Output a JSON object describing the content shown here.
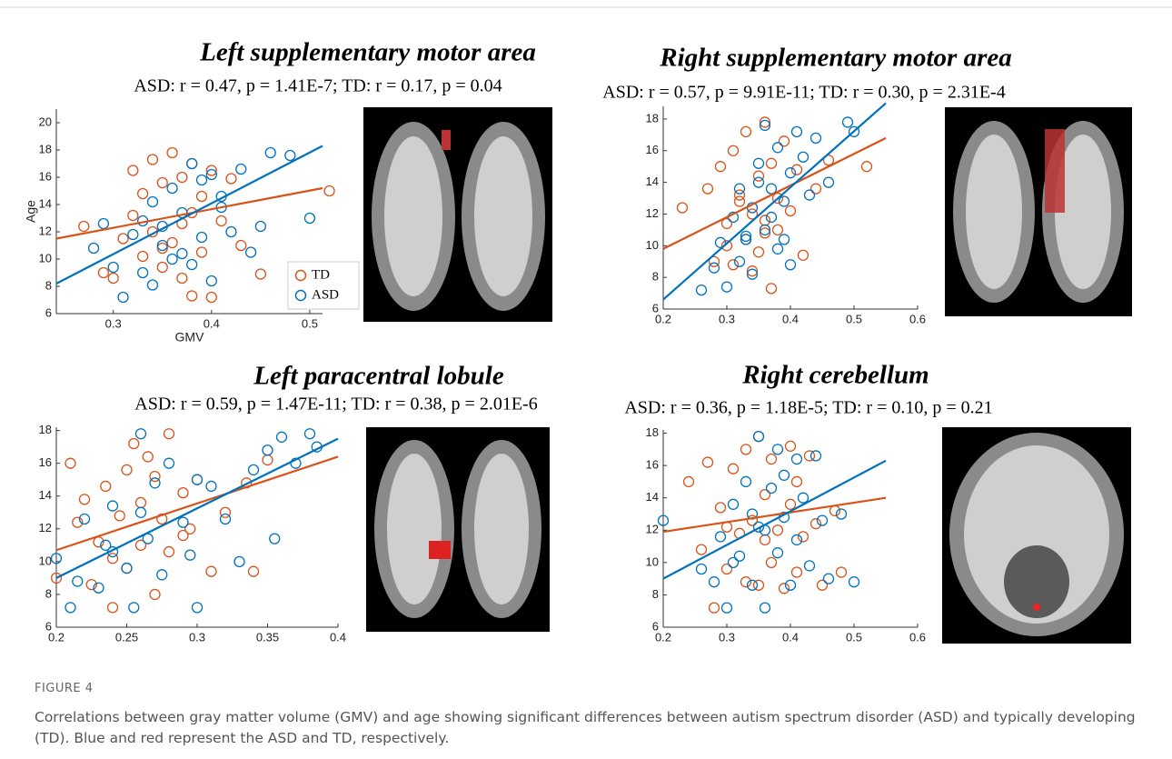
{
  "chart_data": [
    {
      "type": "scatter",
      "title": "Left supplementary motor area",
      "subtitle": "ASD: r = 0.47, p = 1.41E-7;  TD: r = 0.17, p = 0.04",
      "xlabel": "GMV",
      "ylabel": "Age",
      "legend": "lower right",
      "xlim": [
        0.242,
        0.513
      ],
      "ylim": [
        6,
        21
      ],
      "xticks": [
        0.3,
        0.4,
        0.5
      ],
      "yticks": [
        6,
        8,
        10,
        12,
        14,
        16,
        18,
        20
      ],
      "series": [
        {
          "name": "TD",
          "color": "#d95319",
          "x": [
            0.27,
            0.29,
            0.3,
            0.31,
            0.32,
            0.33,
            0.33,
            0.34,
            0.34,
            0.35,
            0.35,
            0.36,
            0.36,
            0.37,
            0.37,
            0.38,
            0.38,
            0.39,
            0.39,
            0.4,
            0.41,
            0.42,
            0.43,
            0.45,
            0.52,
            0.32,
            0.35,
            0.38,
            0.4,
            0.37
          ],
          "y": [
            12.4,
            9.0,
            8.6,
            11.5,
            16.5,
            10.2,
            14.8,
            17.3,
            12.0,
            9.4,
            15.6,
            17.8,
            11.2,
            16.0,
            8.6,
            13.4,
            17.0,
            10.5,
            14.6,
            7.2,
            12.8,
            15.9,
            11.0,
            8.9,
            15.0,
            13.2,
            10.8,
            7.3,
            16.5,
            12.6
          ]
        },
        {
          "name": "ASD",
          "color": "#0072bd",
          "x": [
            0.28,
            0.29,
            0.3,
            0.31,
            0.32,
            0.33,
            0.34,
            0.34,
            0.35,
            0.36,
            0.36,
            0.37,
            0.38,
            0.38,
            0.39,
            0.4,
            0.4,
            0.41,
            0.42,
            0.43,
            0.44,
            0.45,
            0.46,
            0.48,
            0.5,
            0.33,
            0.37,
            0.39,
            0.41,
            0.35
          ],
          "y": [
            10.8,
            12.6,
            9.4,
            7.2,
            11.8,
            9.0,
            14.2,
            8.1,
            12.4,
            10.0,
            15.2,
            13.4,
            9.6,
            17.0,
            11.6,
            16.2,
            8.4,
            14.6,
            12.0,
            16.6,
            10.5,
            12.4,
            17.8,
            17.6,
            13.0,
            12.8,
            10.4,
            15.8,
            13.8,
            11.0
          ]
        }
      ],
      "fits": [
        {
          "color": "#d95319",
          "x": [
            0.242,
            0.513
          ],
          "y": [
            11.5,
            15.2
          ]
        },
        {
          "color": "#0072bd",
          "x": [
            0.242,
            0.513
          ],
          "y": [
            8.2,
            18.3
          ]
        }
      ]
    },
    {
      "type": "scatter",
      "title": "Right supplementary motor area",
      "subtitle": "ASD: r = 0.57, p = 9.91E-11; TD: r = 0.30, p = 2.31E-4",
      "xlim": [
        0.2,
        0.6
      ],
      "ylim": [
        6,
        18.8
      ],
      "xticks": [
        0.2,
        0.3,
        0.4,
        0.5,
        0.6
      ],
      "yticks": [
        6,
        8,
        10,
        12,
        14,
        16,
        18
      ],
      "series": [
        {
          "color": "#d95319",
          "x": [
            0.23,
            0.27,
            0.28,
            0.29,
            0.3,
            0.31,
            0.31,
            0.32,
            0.33,
            0.33,
            0.34,
            0.35,
            0.35,
            0.36,
            0.36,
            0.37,
            0.37,
            0.38,
            0.39,
            0.4,
            0.41,
            0.42,
            0.44,
            0.46,
            0.52,
            0.3,
            0.34,
            0.38,
            0.32,
            0.36
          ],
          "y": [
            12.4,
            13.6,
            9.0,
            15.0,
            11.4,
            8.8,
            16.0,
            13.2,
            10.4,
            17.2,
            12.0,
            14.4,
            9.6,
            17.8,
            11.6,
            15.2,
            7.3,
            13.0,
            16.6,
            12.2,
            14.8,
            9.4,
            13.6,
            15.4,
            15.0,
            10.0,
            8.4,
            11.0,
            12.8,
            10.8
          ]
        },
        {
          "color": "#0072bd",
          "x": [
            0.26,
            0.28,
            0.29,
            0.3,
            0.31,
            0.32,
            0.32,
            0.33,
            0.34,
            0.34,
            0.35,
            0.36,
            0.36,
            0.37,
            0.38,
            0.38,
            0.39,
            0.4,
            0.4,
            0.41,
            0.42,
            0.43,
            0.44,
            0.46,
            0.49,
            0.5,
            0.33,
            0.37,
            0.35,
            0.39
          ],
          "y": [
            7.2,
            8.6,
            10.2,
            7.4,
            11.8,
            9.0,
            13.6,
            10.6,
            12.4,
            8.2,
            15.2,
            11.0,
            17.6,
            13.6,
            9.8,
            16.2,
            12.8,
            14.6,
            8.8,
            17.2,
            15.6,
            13.2,
            16.8,
            14.0,
            17.8,
            17.2,
            10.4,
            11.8,
            14.0,
            10.4
          ]
        }
      ],
      "fits": [
        {
          "color": "#d95319",
          "x": [
            0.2,
            0.55
          ],
          "y": [
            9.8,
            16.8
          ]
        },
        {
          "color": "#0072bd",
          "x": [
            0.2,
            0.55
          ],
          "y": [
            6.6,
            19.0
          ]
        }
      ]
    },
    {
      "type": "scatter",
      "title": "Left paracentral lobule",
      "subtitle": "ASD: r = 0.59, p = 1.47E-11; TD: r = 0.38, p = 2.01E-6",
      "xlim": [
        0.2,
        0.4
      ],
      "ylim": [
        6,
        18.2
      ],
      "xticks": [
        0.2,
        0.25,
        0.3,
        0.35,
        0.4
      ],
      "yticks": [
        6,
        8,
        10,
        12,
        14,
        16,
        18
      ],
      "series": [
        {
          "color": "#d95319",
          "x": [
            0.2,
            0.21,
            0.215,
            0.22,
            0.225,
            0.23,
            0.235,
            0.24,
            0.245,
            0.25,
            0.25,
            0.255,
            0.26,
            0.26,
            0.265,
            0.27,
            0.275,
            0.28,
            0.28,
            0.29,
            0.295,
            0.3,
            0.31,
            0.32,
            0.335,
            0.34,
            0.35,
            0.24,
            0.27,
            0.29
          ],
          "y": [
            9.0,
            16.0,
            12.4,
            13.8,
            8.6,
            11.2,
            14.6,
            7.2,
            12.8,
            15.6,
            9.6,
            17.2,
            11.0,
            13.6,
            16.4,
            8.0,
            12.6,
            17.8,
            10.6,
            14.2,
            12.0,
            15.0,
            9.4,
            13.0,
            14.8,
            9.4,
            16.2,
            10.2,
            15.2,
            11.6
          ]
        },
        {
          "color": "#0072bd",
          "x": [
            0.2,
            0.21,
            0.215,
            0.22,
            0.23,
            0.235,
            0.24,
            0.25,
            0.255,
            0.26,
            0.265,
            0.27,
            0.275,
            0.28,
            0.29,
            0.295,
            0.3,
            0.31,
            0.32,
            0.33,
            0.34,
            0.35,
            0.355,
            0.36,
            0.37,
            0.38,
            0.385,
            0.26,
            0.3,
            0.24
          ],
          "y": [
            10.2,
            7.2,
            8.8,
            12.6,
            8.4,
            11.0,
            13.4,
            9.6,
            7.2,
            17.8,
            11.4,
            14.8,
            9.2,
            16.0,
            12.4,
            10.4,
            7.2,
            14.6,
            12.6,
            10.0,
            15.6,
            16.8,
            11.4,
            17.6,
            16.0,
            17.8,
            17.0,
            13.0,
            15.0,
            10.6
          ]
        }
      ],
      "fits": [
        {
          "color": "#d95319",
          "x": [
            0.2,
            0.4
          ],
          "y": [
            10.7,
            16.4
          ]
        },
        {
          "color": "#0072bd",
          "x": [
            0.2,
            0.4
          ],
          "y": [
            9.0,
            17.5
          ]
        }
      ]
    },
    {
      "type": "scatter",
      "title": "Right cerebellum",
      "subtitle": "ASD: r = 0.36, p = 1.18E-5; TD: r = 0.10, p = 0.21",
      "xlim": [
        0.2,
        0.6
      ],
      "ylim": [
        6,
        18.2
      ],
      "xticks": [
        0.2,
        0.3,
        0.4,
        0.5,
        0.6
      ],
      "yticks": [
        6,
        8,
        10,
        12,
        14,
        16,
        18
      ],
      "series": [
        {
          "color": "#d95319",
          "x": [
            0.24,
            0.26,
            0.27,
            0.28,
            0.29,
            0.3,
            0.31,
            0.32,
            0.33,
            0.34,
            0.35,
            0.35,
            0.36,
            0.37,
            0.37,
            0.38,
            0.39,
            0.4,
            0.4,
            0.41,
            0.42,
            0.43,
            0.44,
            0.45,
            0.47,
            0.48,
            0.3,
            0.36,
            0.41,
            0.33
          ],
          "y": [
            15.0,
            10.8,
            16.2,
            7.2,
            13.4,
            9.6,
            15.8,
            11.8,
            17.0,
            12.6,
            8.6,
            17.8,
            14.2,
            10.0,
            16.4,
            12.0,
            8.4,
            17.2,
            13.6,
            9.4,
            11.6,
            16.6,
            12.4,
            8.6,
            13.2,
            9.4,
            12.2,
            11.4,
            15.0,
            8.8
          ]
        },
        {
          "color": "#0072bd",
          "x": [
            0.2,
            0.26,
            0.28,
            0.29,
            0.3,
            0.31,
            0.32,
            0.33,
            0.34,
            0.35,
            0.35,
            0.36,
            0.37,
            0.38,
            0.38,
            0.39,
            0.4,
            0.41,
            0.41,
            0.42,
            0.43,
            0.44,
            0.45,
            0.46,
            0.48,
            0.5,
            0.31,
            0.36,
            0.39,
            0.34
          ],
          "y": [
            12.6,
            9.6,
            8.8,
            11.6,
            7.2,
            13.6,
            10.4,
            15.0,
            8.6,
            12.2,
            17.8,
            7.2,
            14.6,
            10.6,
            17.0,
            12.8,
            8.6,
            16.4,
            11.4,
            14.0,
            9.8,
            16.6,
            12.6,
            9.0,
            13.0,
            8.8,
            10.0,
            12.0,
            15.4,
            13.0
          ]
        }
      ],
      "fits": [
        {
          "color": "#d95319",
          "x": [
            0.2,
            0.55
          ],
          "y": [
            11.9,
            14.0
          ]
        },
        {
          "color": "#0072bd",
          "x": [
            0.2,
            0.55
          ],
          "y": [
            9.0,
            16.3
          ]
        }
      ]
    }
  ],
  "caption": {
    "label": "FIGURE 4",
    "text": "Correlations between gray matter volume (GMV) and age showing significant differences between autism spectrum disorder (ASD) and typically developing (TD). Blue and red represent the ASD and TD, respectively."
  }
}
